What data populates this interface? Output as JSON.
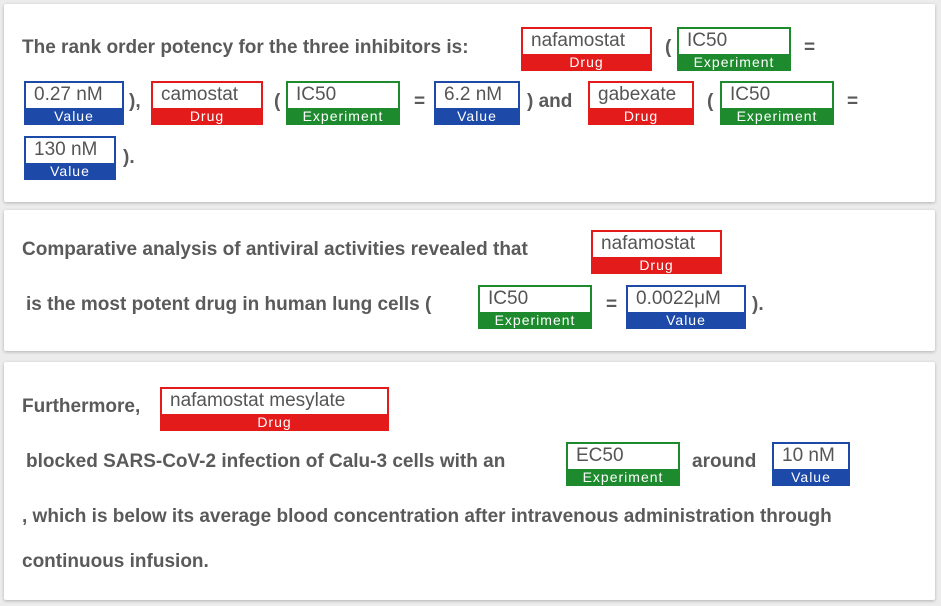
{
  "labels": {
    "drug": "Drug",
    "experiment": "Experiment",
    "value": "Value"
  },
  "colors": {
    "drug": "#e31b1b",
    "experiment": "#1e8a2e",
    "value": "#1d49a8",
    "text": "#5a5a5a"
  },
  "card1": {
    "t1": "The rank order potency for the three inhibitors is:",
    "e1": "nafamostat",
    "p1": "(",
    "e2": "IC50",
    "eq1": "=",
    "e3": "0.27 nM",
    "p2": "),",
    "e4": "camostat",
    "p3": "(",
    "e5": "IC50",
    "eq2": "=",
    "e6": "6.2 nM",
    "t2": ") and",
    "e7": "gabexate",
    "p4": "(",
    "e8": "IC50",
    "eq3": "=",
    "e9": "130 nM",
    "t3": ")."
  },
  "card2": {
    "t1": "Comparative analysis of antiviral activities revealed that",
    "e1": "nafamostat",
    "t2": "is the most potent drug in human lung cells (",
    "e2": "IC50",
    "eq1": "=",
    "e3": "0.0022μM",
    "t3": ")."
  },
  "card3": {
    "t1": "Furthermore,",
    "e1": "nafamostat mesylate",
    "t2": "blocked SARS-CoV-2 infection of Calu-3 cells with an",
    "e2": "EC50",
    "t3": "around",
    "e3": "10 nM",
    "t4": ", which is below its average blood concentration after intravenous administration through",
    "t5": "continuous infusion."
  }
}
